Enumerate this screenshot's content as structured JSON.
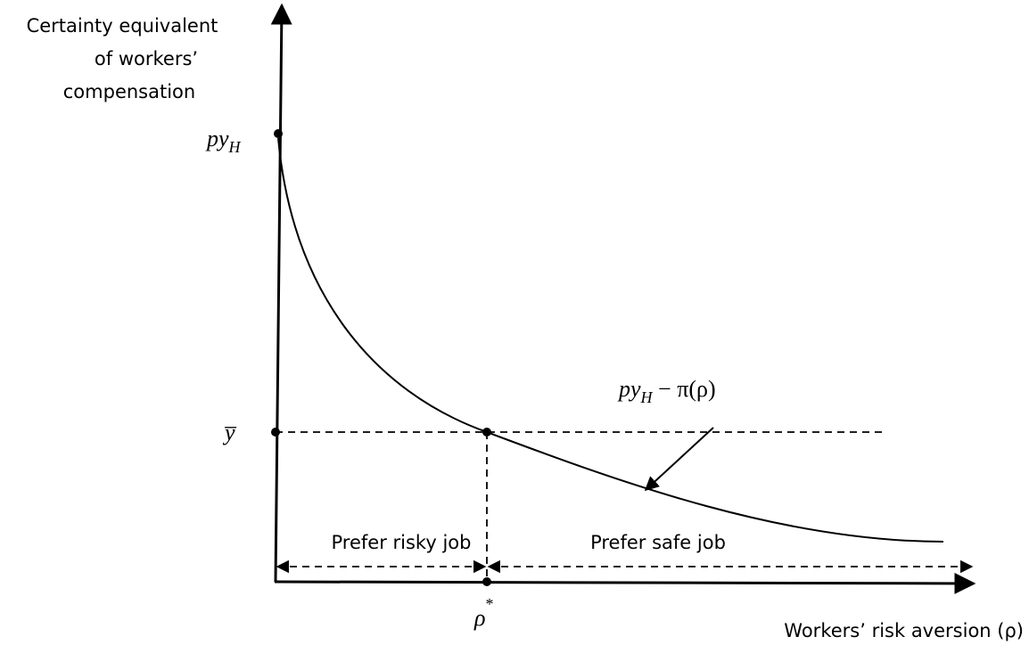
{
  "y_axis_label": [
    "Certainty equivalent",
    "of workers’",
    "compensation"
  ],
  "x_axis_label": "Workers’ risk aversion (ρ)",
  "top_point_label": {
    "base": "py",
    "sub": "H"
  },
  "mid_point_label": "y̅",
  "curve_label": {
    "base": "py",
    "sub": "H",
    "rest": " − π(ρ)"
  },
  "threshold_label": {
    "base": "ρ",
    "sup": "*"
  },
  "regions": [
    "Prefer risky job",
    "Prefer safe job"
  ]
}
